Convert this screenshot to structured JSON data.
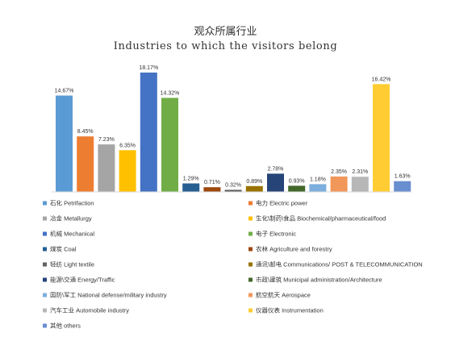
{
  "chart_data": {
    "type": "bar",
    "title": "观众所属行业",
    "subtitle": "Industries to which the visitors belong",
    "xlabel": "",
    "ylabel": "",
    "ylim": [
      0,
      20
    ],
    "grid": false,
    "legend_position": "bottom",
    "categories": [
      "石化 Petrifaction",
      "电力 Electric power",
      "冶金 Metallurgy",
      "生化\\制药\\食品 Biochemical/pharmaceutical/food",
      "机械 Mechanical",
      "电子 Electronic",
      "煤炭 Coal",
      "农林 Agriculture and forestry",
      "轻纺 Light textile",
      "通讯\\邮电 Communications/ POST & TELECOMMUNICATION",
      "能源\\交通 Energy/Traffic",
      "市政\\建筑 Municipal administration/Architecture",
      "国防\\军工 National defense/military industry",
      "航空航天 Aerospace",
      "汽车工业 Automobile industry",
      "仪器仪表 Instrumentation",
      "其他 others"
    ],
    "values": [
      14.67,
      8.45,
      7.23,
      6.35,
      18.17,
      14.32,
      1.29,
      0.71,
      0.32,
      0.89,
      2.78,
      0.93,
      1.18,
      2.35,
      2.31,
      16.42,
      1.63
    ],
    "data_labels": [
      "14.67%",
      "8.45%",
      "7.23%",
      "6.35%",
      "18.17%",
      "14.32%",
      "1.29%",
      "0.71%",
      "0.32%",
      "0.89%",
      "2.78%",
      "0.93%",
      "1.18%",
      "2.35%",
      "2.31%",
      "16.42%",
      "1.63%"
    ],
    "colors": [
      "#5b9bd5",
      "#ed7d31",
      "#a5a5a5",
      "#ffc000",
      "#4472c4",
      "#70ad47",
      "#255e91",
      "#9e480e",
      "#636363",
      "#997300",
      "#264478",
      "#43682b",
      "#7cafdd",
      "#f1975a",
      "#b7b7b7",
      "#ffcd33",
      "#698ed0"
    ]
  }
}
